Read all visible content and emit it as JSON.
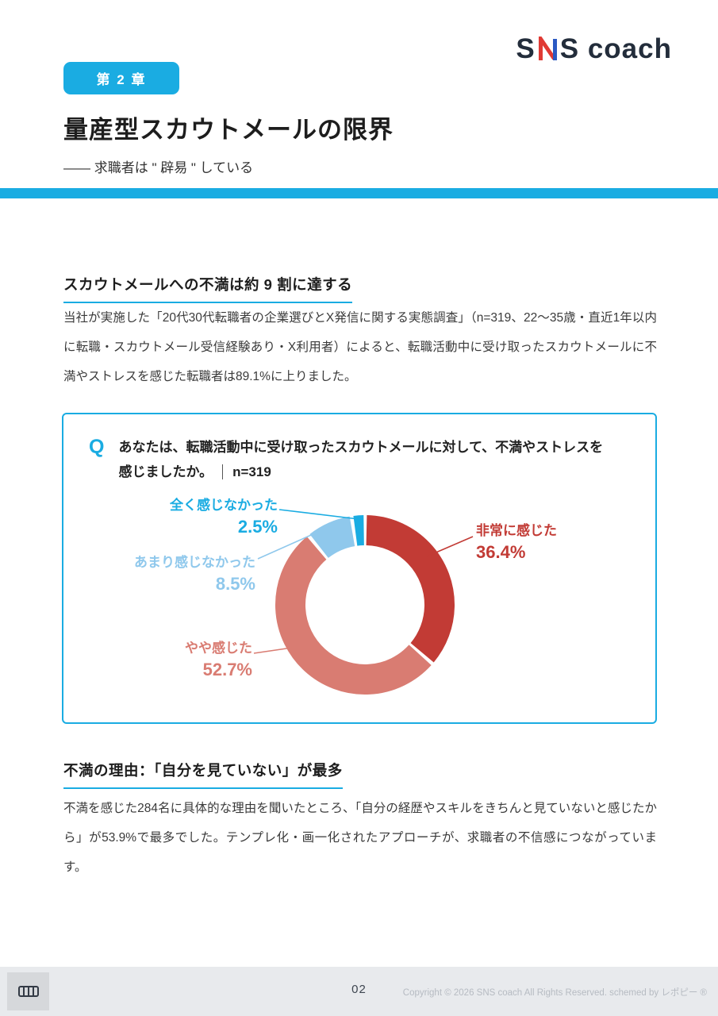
{
  "colors": {
    "accent": "#1aace2",
    "segment_very": "#c23b35",
    "segment_somewhat": "#d97c72",
    "segment_little": "#8fc8ec",
    "segment_none": "#1aace2",
    "logo_red": "#e03a34",
    "logo_blue": "#2b59c3"
  },
  "header": {
    "logo_first": "S",
    "logo_rest": "S coach",
    "chapter_badge": "第 2 章",
    "title": "量産型スカウトメールの限界",
    "subtitle": "―― 求職者は \" 辟易 \" している"
  },
  "section1": {
    "heading": "スカウトメールへの不満は約 9 割に達する",
    "body": "当社が実施した「20代30代転職者の企業選びとX発信に関する実態調査」（n=319、22〜35歳・直近1年以内に転職・スカウトメール受信経験あり・X利用者）によると、転職活動中に受け取ったスカウトメールに不満やストレスを感じた転職者は89.1%に上りました。"
  },
  "question_box": {
    "q_label": "Q",
    "question": "あなたは、転職活動中に受け取ったスカウトメールに対して、不満やストレスを感じましたか。",
    "sample": "n=319"
  },
  "chart_data": {
    "type": "pie",
    "subtype": "donut",
    "labels": [
      "非常に感じた",
      "やや感じた",
      "あまり感じなかった",
      "全く感じなかった"
    ],
    "values": [
      36.4,
      52.7,
      8.5,
      2.5
    ],
    "colors": [
      "#c23b35",
      "#d97c72",
      "#8fc8ec",
      "#1aace2"
    ],
    "unit": "%",
    "start_angle_deg": -90,
    "direction": "clockwise",
    "legend_position": "callout-labels"
  },
  "section2": {
    "heading": "不満の理由：「自分を見ていない」が最多",
    "body": "不満を感じた284名に具体的な理由を聞いたところ、「自分の経歴やスキルをきちんと見ていないと感じたから」が53.9%で最多でした。テンプレ化・画一化されたアプローチが、求職者の不信感につながっています。"
  },
  "footer": {
    "page_number": "02",
    "copyright": "Copyright © 2026 SNS coach All Rights Reserved. schemed by レポピー ®"
  }
}
